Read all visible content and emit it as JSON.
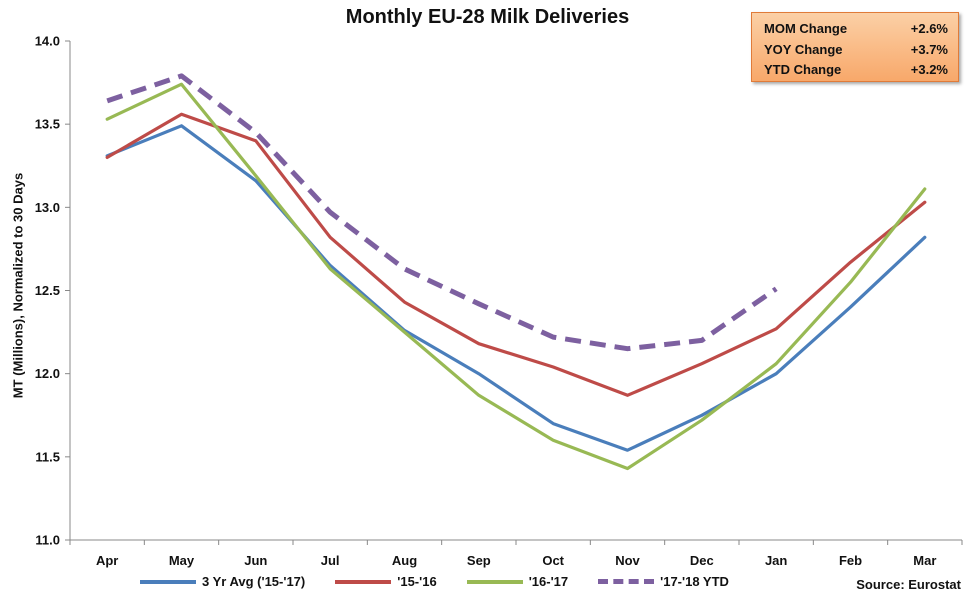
{
  "info_box": [
    {
      "label": "MOM Change",
      "value": "+2.6%"
    },
    {
      "label": "YOY Change",
      "value": "+3.7%"
    },
    {
      "label": "YTD Change",
      "value": "+3.2%"
    }
  ],
  "source": "Source: Eurostat",
  "chart_data": {
    "type": "line",
    "title": "Monthly EU-28 Milk Deliveries",
    "xlabel": "",
    "ylabel": "MT (Millions), Normalized to 30 Days",
    "categories": [
      "Apr",
      "May",
      "Jun",
      "Jul",
      "Aug",
      "Sep",
      "Oct",
      "Nov",
      "Dec",
      "Jan",
      "Feb",
      "Mar"
    ],
    "ylim": [
      11.0,
      14.0
    ],
    "yticks": [
      "11.0",
      "11.5",
      "12.0",
      "12.5",
      "13.0",
      "13.5",
      "14.0"
    ],
    "grid": false,
    "legend_position": "bottom",
    "series": [
      {
        "name": "3 Yr Avg ('15-'17)",
        "color": "#4a7ebb",
        "dashed": false,
        "values": [
          13.31,
          13.49,
          13.16,
          12.65,
          12.26,
          12.0,
          11.7,
          11.54,
          11.75,
          12.0,
          12.4,
          12.82
        ]
      },
      {
        "name": "'15-'16",
        "color": "#be4b48",
        "dashed": false,
        "values": [
          13.3,
          13.56,
          13.4,
          12.82,
          12.43,
          12.18,
          12.04,
          11.87,
          12.06,
          12.27,
          12.67,
          13.03
        ]
      },
      {
        "name": "'16-'17",
        "color": "#98b954",
        "dashed": false,
        "values": [
          13.53,
          13.74,
          13.19,
          12.63,
          12.25,
          11.87,
          11.6,
          11.43,
          11.72,
          12.06,
          12.55,
          13.11
        ]
      },
      {
        "name": "'17-'18 YTD",
        "color": "#7d60a0",
        "dashed": true,
        "values": [
          13.64,
          13.79,
          13.45,
          12.97,
          12.63,
          12.42,
          12.22,
          12.15,
          12.2,
          12.51,
          null,
          null
        ]
      }
    ]
  }
}
